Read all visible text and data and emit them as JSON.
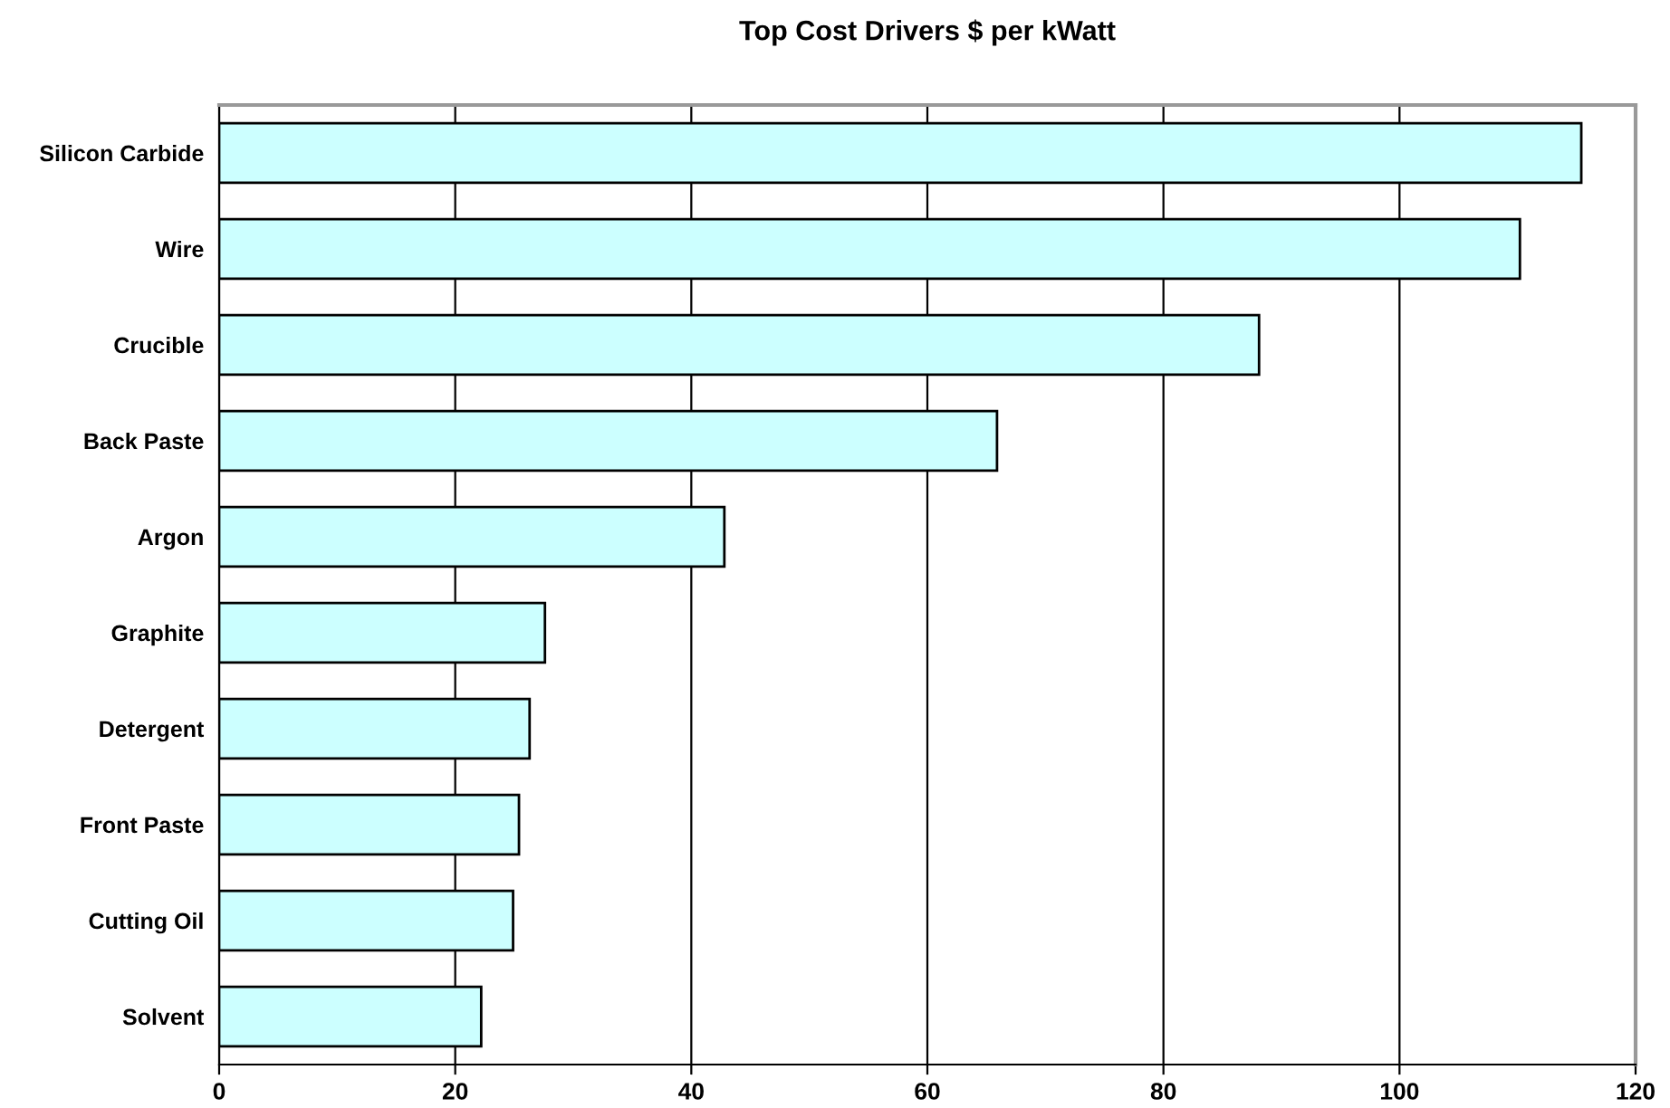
{
  "chart_data": {
    "type": "bar",
    "orientation": "horizontal",
    "title": "Top Cost Drivers $ per kWatt",
    "categories": [
      "Silicon Carbide",
      "Wire",
      "Crucible",
      "Back Paste",
      "Argon",
      "Graphite",
      "Detergent",
      "Front Paste",
      "Cutting Oil",
      "Solvent"
    ],
    "values": [
      115.4,
      110.2,
      88.1,
      65.9,
      42.8,
      27.6,
      26.3,
      25.4,
      24.9,
      22.2
    ],
    "color": "#ccffff",
    "xlim": [
      0,
      120
    ],
    "xticks": [
      0,
      20,
      40,
      60,
      80,
      100,
      120
    ],
    "grid": "x",
    "legend": false
  }
}
